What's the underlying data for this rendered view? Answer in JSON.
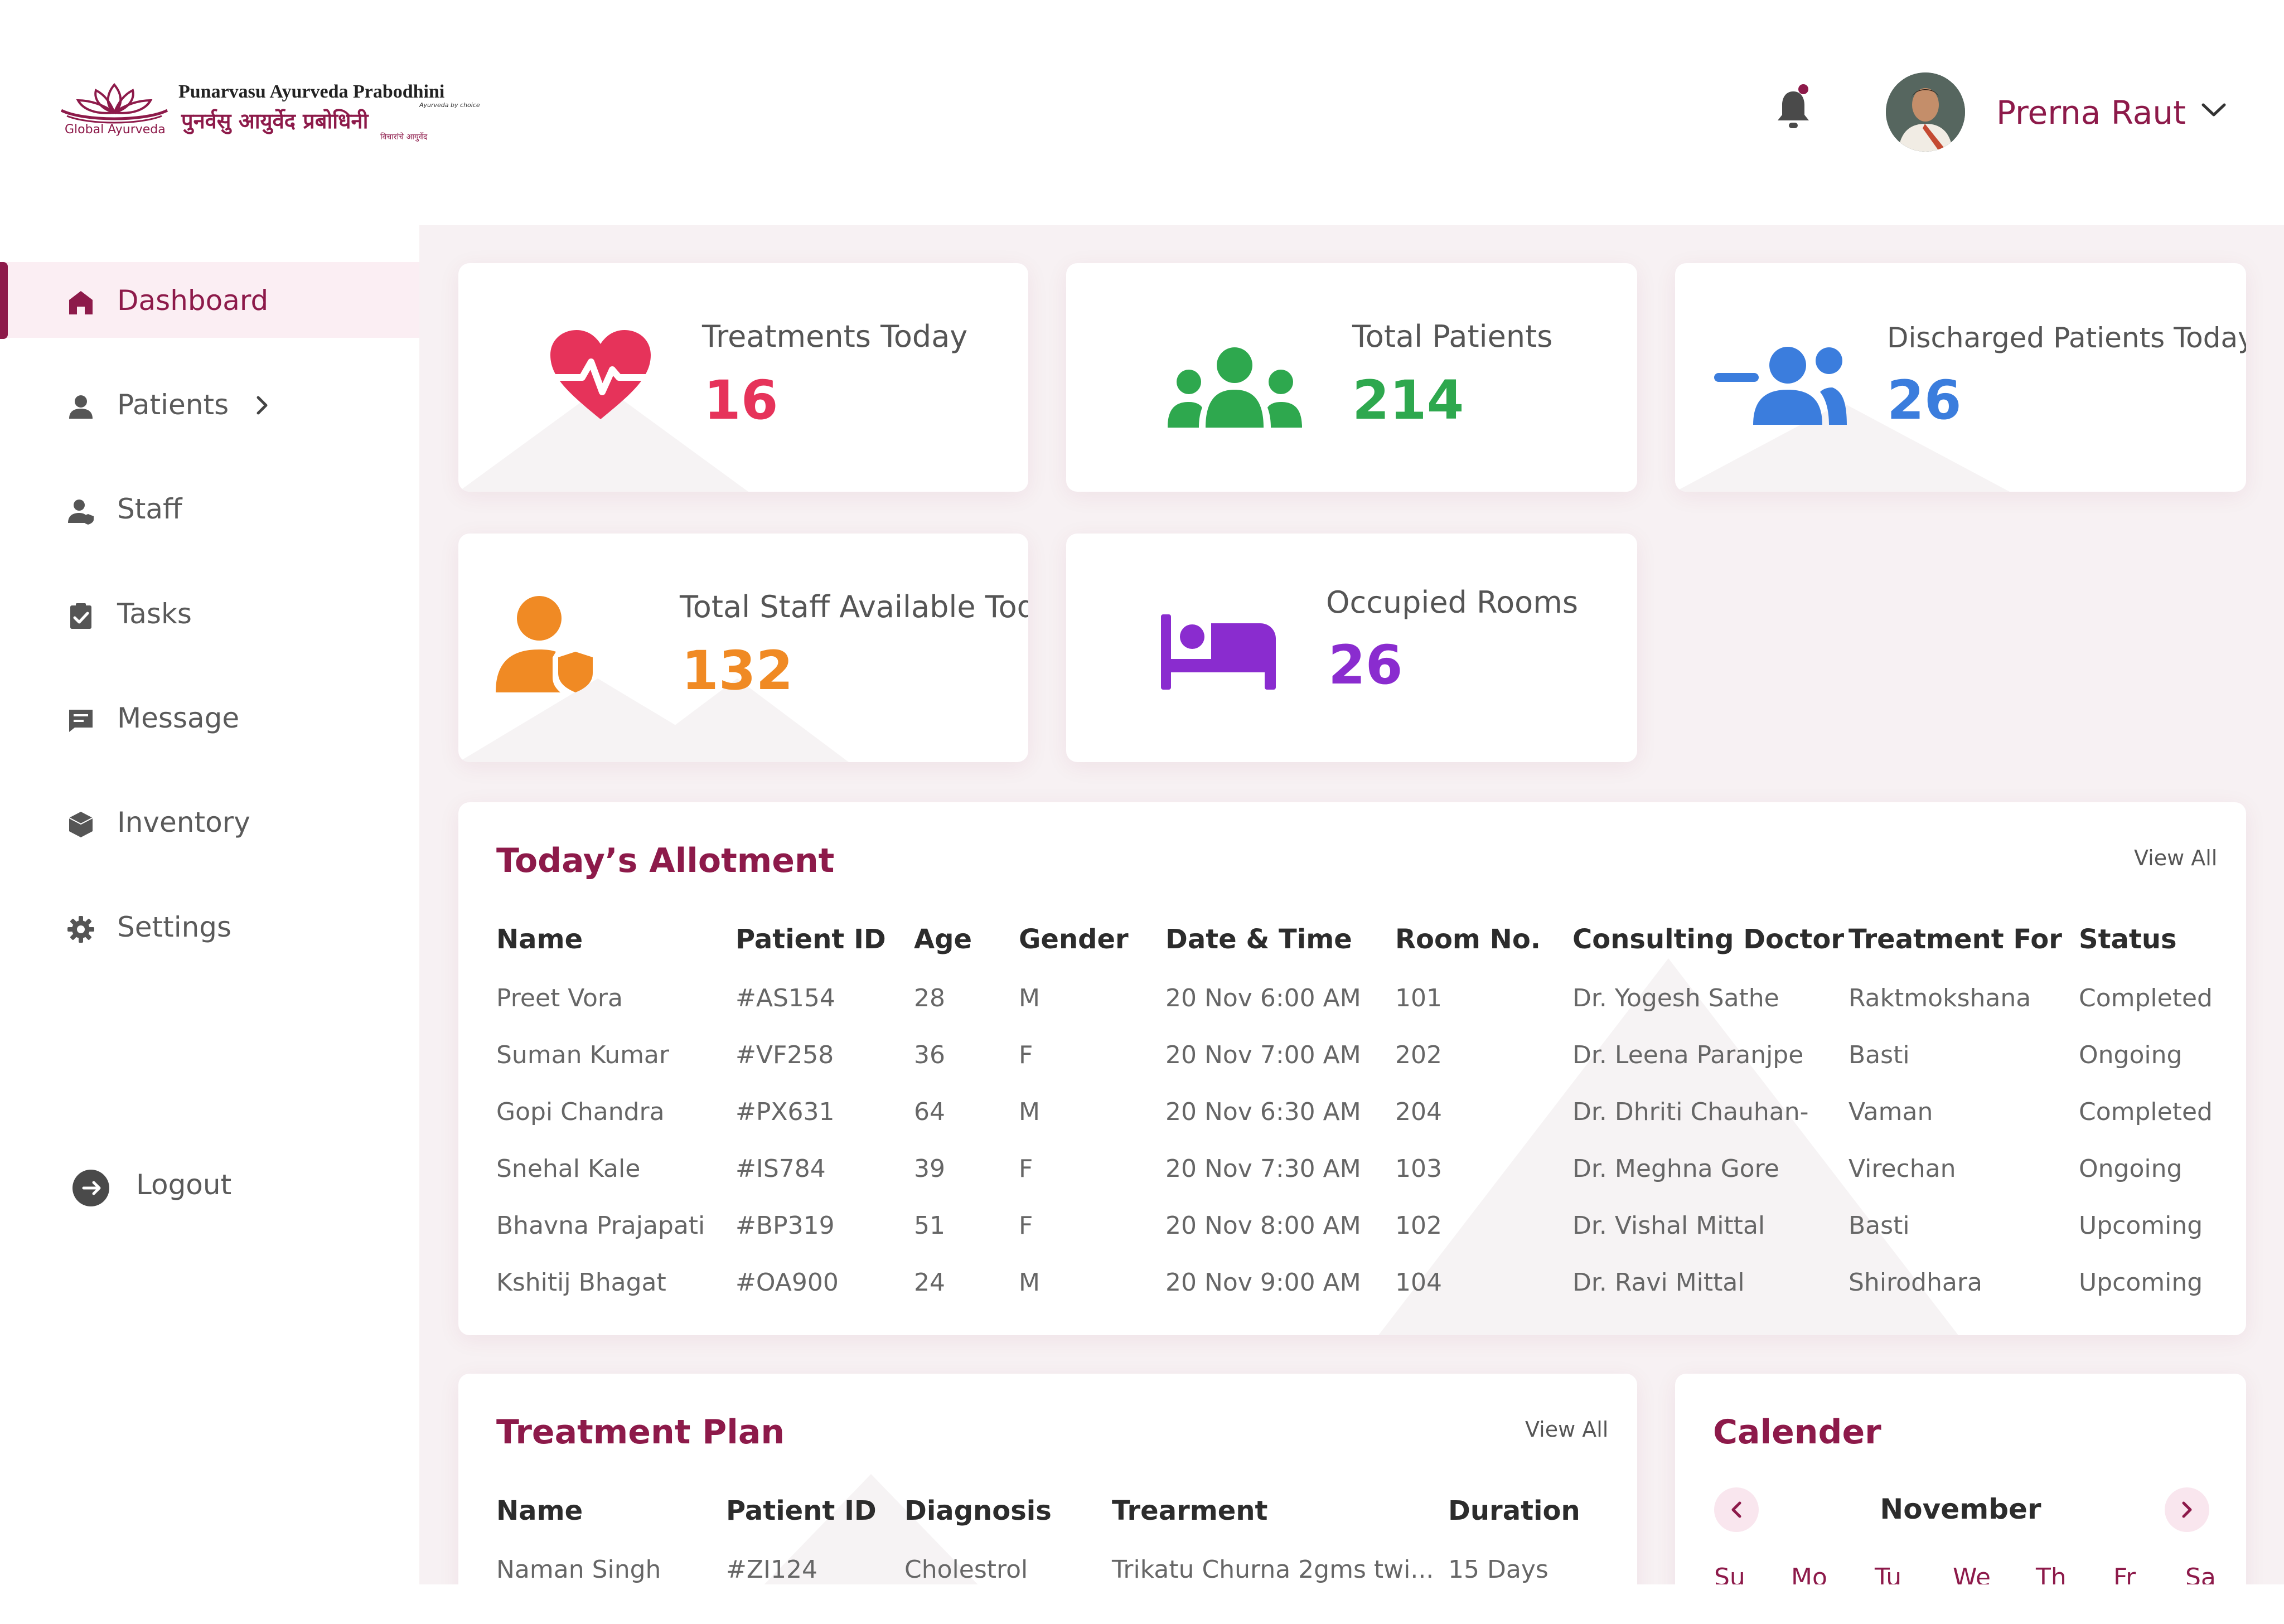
{
  "header": {
    "logo": {
      "name_en": "Punarvasu Ayurveda Prabodhini",
      "name_hi": "पुनर्वसु आयुर्वेद प्रबोधिनी",
      "tagline": "Ayurveda by choice",
      "tagline_hi": "विचारांचे आयुर्वेद",
      "mark_text": "Global Ayurveda"
    },
    "notification_icon": "bell-icon",
    "user": {
      "name": "Prerna Raut"
    }
  },
  "sidebar": {
    "items": [
      {
        "label": "Dashboard",
        "icon": "home-icon"
      },
      {
        "label": "Patients",
        "icon": "user-icon"
      },
      {
        "label": "Staff",
        "icon": "staff-icon"
      },
      {
        "label": "Tasks",
        "icon": "clipboard-icon"
      },
      {
        "label": "Message",
        "icon": "message-icon"
      },
      {
        "label": "Inventory",
        "icon": "box-icon"
      },
      {
        "label": "Settings",
        "icon": "gear-icon"
      }
    ],
    "logout": "Logout"
  },
  "stats": [
    {
      "label": "Treatments Today",
      "value": "16",
      "color": "#e6335a",
      "icon": "heartbeat-icon"
    },
    {
      "label": "Total Patients",
      "value": "214",
      "color": "#2ea84e",
      "icon": "group-icon"
    },
    {
      "label": "Discharged Patients Today",
      "value": "26",
      "color": "#3b7ddd",
      "icon": "remove-user-icon"
    },
    {
      "label": "Total Staff Available Today",
      "value": "132",
      "color": "#f08a24",
      "icon": "staff-shield-icon"
    },
    {
      "label": "Occupied Rooms",
      "value": "26",
      "color": "#8a2ccf",
      "icon": "bed-icon"
    }
  ],
  "allotment": {
    "title": "Today’s Allotment",
    "view_all": "View All",
    "columns": [
      "Name",
      "Patient ID",
      "Age",
      "Gender",
      "Date & Time",
      "Room No.",
      "Consulting Doctor",
      "Treatment For",
      "Status"
    ],
    "rows": [
      [
        "Preet Vora",
        "#AS154",
        "28",
        "M",
        "20 Nov 6:00 AM",
        "101",
        "Dr. Yogesh Sathe",
        "Raktmokshana",
        "Completed"
      ],
      [
        "Suman Kumar",
        "#VF258",
        "36",
        "F",
        "20 Nov 7:00 AM",
        "202",
        "Dr. Leena Paranjpe",
        "Basti",
        "Ongoing"
      ],
      [
        "Gopi Chandra",
        "#PX631",
        "64",
        "M",
        "20 Nov 6:30 AM",
        "204",
        "Dr. Dhriti Chauhan-",
        "Vaman",
        "Completed"
      ],
      [
        "Snehal Kale",
        "#IS784",
        "39",
        "F",
        "20 Nov 7:30 AM",
        "103",
        "Dr. Meghna Gore",
        "Virechan",
        "Ongoing"
      ],
      [
        "Bhavna Prajapati",
        "#BP319",
        "51",
        "F",
        "20 Nov 8:00 AM",
        "102",
        "Dr. Vishal Mittal",
        "Basti",
        "Upcoming"
      ],
      [
        "Kshitij Bhagat",
        "#OA900",
        "24",
        "M",
        "20 Nov 9:00 AM",
        "104",
        "Dr. Ravi Mittal",
        "Shirodhara",
        "Upcoming"
      ]
    ]
  },
  "treatment_plan": {
    "title": "Treatment Plan",
    "view_all": "View All",
    "columns": [
      "Name",
      "Patient ID",
      "Diagnosis",
      "Trearment",
      "Duration"
    ],
    "rows": [
      [
        "Naman Singh",
        "#ZI124",
        "Cholestrol",
        "Trikatu Churna 2gms twi...",
        "15 Days"
      ]
    ]
  },
  "calendar": {
    "title": "Calender",
    "month": "November",
    "weekdays": [
      "Su",
      "Mo",
      "Tu",
      "We",
      "Th",
      "Fr",
      "Sa"
    ]
  },
  "colors": {
    "brand": "#8d1a4a",
    "active_bg": "#fbeef3",
    "main_bg": "#f7f1f3"
  }
}
